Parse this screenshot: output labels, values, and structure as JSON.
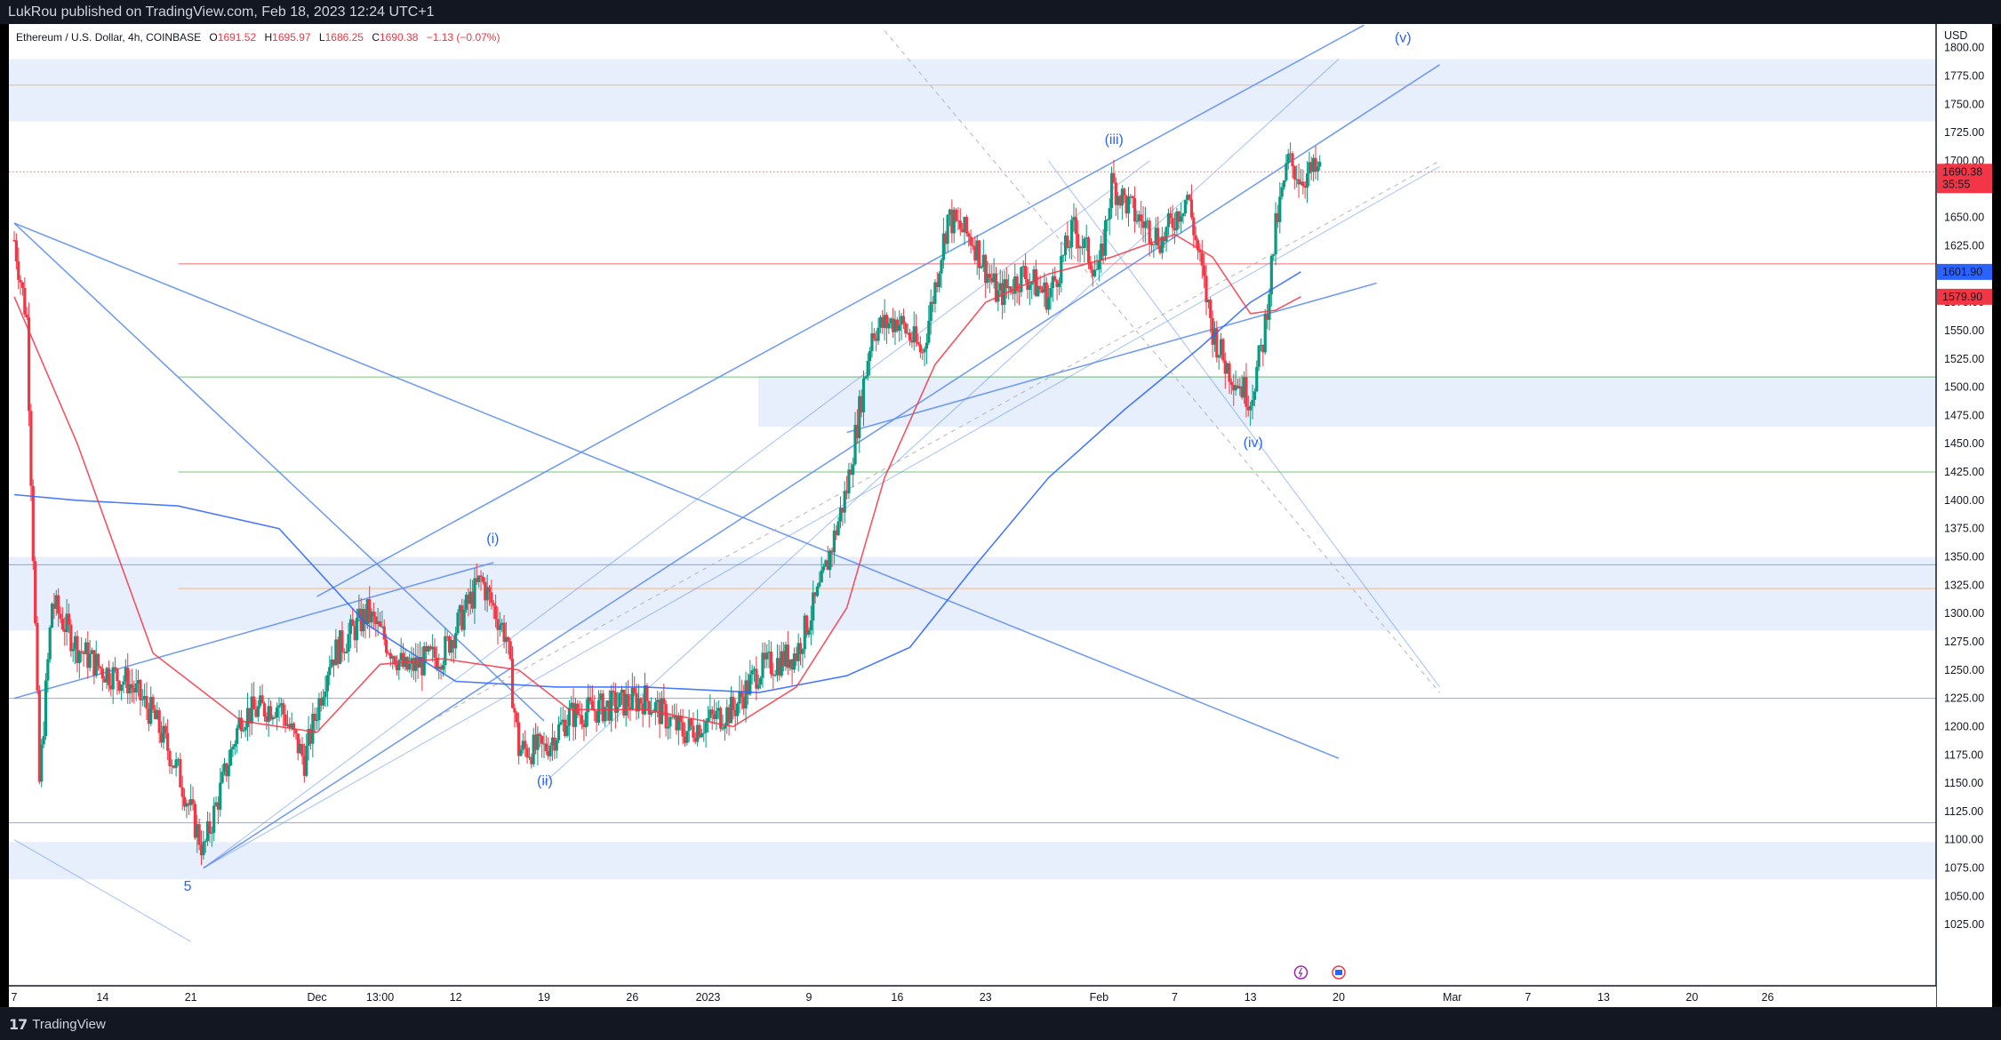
{
  "header": {
    "publish_line": "LukRou published on TradingView.com, Feb 18, 2023 12:24 UTC+1"
  },
  "footer": {
    "brand": "TradingView",
    "logo_icon": "tradingview-logo-icon"
  },
  "legend": {
    "symbol": "Ethereum / U.S. Dollar, 4h, COINBASE",
    "open_label": "O",
    "open": "1691.52",
    "high_label": "H",
    "high": "1695.97",
    "low_label": "L",
    "low": "1686.25",
    "close_label": "C",
    "close": "1690.38",
    "change": "−1.13 (−0.07%)"
  },
  "price_axis": {
    "currency": "USD",
    "ticks": [
      "1800.00",
      "1775.00",
      "1750.00",
      "1725.00",
      "1700.00",
      "1675.00",
      "1650.00",
      "1625.00",
      "1600.00",
      "1575.00",
      "1550.00",
      "1525.00",
      "1500.00",
      "1475.00",
      "1450.00",
      "1425.00",
      "1400.00",
      "1375.00",
      "1350.00",
      "1325.00",
      "1300.00",
      "1275.00",
      "1250.00",
      "1225.00",
      "1200.00",
      "1175.00",
      "1150.00",
      "1125.00",
      "1100.00",
      "1075.00",
      "1050.00",
      "1025.00"
    ],
    "last_price": "1690.38",
    "countdown": "35:55",
    "ma_labels": [
      {
        "value": "1601.90",
        "color": "#2962ff"
      },
      {
        "value": "1579.90",
        "color": "#f23645"
      }
    ]
  },
  "time_axis": {
    "ticks": [
      "7",
      "14",
      "21",
      "Dec",
      "13:00",
      "12",
      "19",
      "26",
      "2023",
      "9",
      "16",
      "23",
      "Feb",
      "7",
      "13",
      "20",
      "Mar",
      "7",
      "13",
      "20",
      "26"
    ]
  },
  "waves": [
    "5",
    "(i)",
    "(ii)",
    "(iii)",
    "(iv)",
    "(v)"
  ],
  "event_icons": [
    "lightning-event-icon",
    "us-flag-event-icon"
  ],
  "colors": {
    "up": "#089981",
    "down": "#f23645",
    "ma_fast": "#f23645",
    "ma_slow": "#2962ff",
    "trendline": "#5b8def",
    "zone": "#e3ebfc",
    "wave_label": "#2962ff"
  },
  "chart_data": {
    "type": "candlestick",
    "symbol": "ETH/USD",
    "interval": "4h",
    "ylim": [
      1000,
      1810
    ],
    "y_scale": "linear",
    "grid": false,
    "x_range": [
      "2022-11-07",
      "2023-02-28"
    ],
    "price_path": [
      [
        "2022-11-07",
        1630
      ],
      [
        "2022-11-08",
        1560
      ],
      [
        "2022-11-09",
        1150
      ],
      [
        "2022-11-10",
        1310
      ],
      [
        "2022-11-12",
        1270
      ],
      [
        "2022-11-14",
        1250
      ],
      [
        "2022-11-16",
        1240
      ],
      [
        "2022-11-18",
        1210
      ],
      [
        "2022-11-20",
        1160
      ],
      [
        "2022-11-22",
        1090
      ],
      [
        "2022-11-23",
        1130
      ],
      [
        "2022-11-25",
        1210
      ],
      [
        "2022-11-28",
        1220
      ],
      [
        "2022-11-30",
        1170
      ],
      [
        "2022-12-02",
        1260
      ],
      [
        "2022-12-05",
        1300
      ],
      [
        "2022-12-08",
        1250
      ],
      [
        "2022-12-11",
        1265
      ],
      [
        "2022-12-14",
        1330
      ],
      [
        "2022-12-16",
        1280
      ],
      [
        "2022-12-17",
        1180
      ],
      [
        "2022-12-19",
        1180
      ],
      [
        "2022-12-21",
        1210
      ],
      [
        "2022-12-25",
        1220
      ],
      [
        "2022-12-27",
        1225
      ],
      [
        "2022-12-30",
        1195
      ],
      [
        "2023-01-03",
        1215
      ],
      [
        "2023-01-05",
        1250
      ],
      [
        "2023-01-08",
        1265
      ],
      [
        "2023-01-10",
        1325
      ],
      [
        "2023-01-12",
        1410
      ],
      [
        "2023-01-14",
        1550
      ],
      [
        "2023-01-16",
        1560
      ],
      [
        "2023-01-18",
        1530
      ],
      [
        "2023-01-20",
        1650
      ],
      [
        "2023-01-22",
        1630
      ],
      [
        "2023-01-24",
        1580
      ],
      [
        "2023-01-26",
        1600
      ],
      [
        "2023-01-28",
        1580
      ],
      [
        "2023-01-30",
        1640
      ],
      [
        "2023-02-01",
        1600
      ],
      [
        "2023-02-02",
        1680
      ],
      [
        "2023-02-04",
        1650
      ],
      [
        "2023-02-06",
        1630
      ],
      [
        "2023-02-08",
        1670
      ],
      [
        "2023-02-10",
        1550
      ],
      [
        "2023-02-11",
        1520
      ],
      [
        "2023-02-13",
        1490
      ],
      [
        "2023-02-14",
        1540
      ],
      [
        "2023-02-15",
        1640
      ],
      [
        "2023-02-16",
        1700
      ],
      [
        "2023-02-17",
        1685
      ],
      [
        "2023-02-18",
        1690
      ]
    ],
    "ma_fast_path": [
      [
        "2022-11-07",
        1580
      ],
      [
        "2022-11-12",
        1450
      ],
      [
        "2022-11-18",
        1265
      ],
      [
        "2022-11-25",
        1205
      ],
      [
        "2022-12-01",
        1195
      ],
      [
        "2022-12-06",
        1255
      ],
      [
        "2022-12-11",
        1260
      ],
      [
        "2022-12-17",
        1250
      ],
      [
        "2022-12-21",
        1215
      ],
      [
        "2022-12-27",
        1215
      ],
      [
        "2023-01-03",
        1200
      ],
      [
        "2023-01-08",
        1235
      ],
      [
        "2023-01-12",
        1305
      ],
      [
        "2023-01-15",
        1420
      ],
      [
        "2023-01-19",
        1520
      ],
      [
        "2023-01-23",
        1575
      ],
      [
        "2023-01-28",
        1600
      ],
      [
        "2023-02-02",
        1615
      ],
      [
        "2023-02-07",
        1635
      ],
      [
        "2023-02-10",
        1615
      ],
      [
        "2023-02-13",
        1565
      ],
      [
        "2023-02-15",
        1568
      ],
      [
        "2023-02-17",
        1580
      ]
    ],
    "ma_slow_path": [
      [
        "2022-11-07",
        1405
      ],
      [
        "2022-11-12",
        1400
      ],
      [
        "2022-11-20",
        1395
      ],
      [
        "2022-11-28",
        1375
      ],
      [
        "2022-12-05",
        1290
      ],
      [
        "2022-12-12",
        1240
      ],
      [
        "2022-12-20",
        1235
      ],
      [
        "2022-12-27",
        1235
      ],
      [
        "2023-01-05",
        1230
      ],
      [
        "2023-01-12",
        1245
      ],
      [
        "2023-01-17",
        1270
      ],
      [
        "2023-01-22",
        1340
      ],
      [
        "2023-01-28",
        1420
      ],
      [
        "2023-02-03",
        1480
      ],
      [
        "2023-02-09",
        1535
      ],
      [
        "2023-02-13",
        1575
      ],
      [
        "2023-02-17",
        1602
      ]
    ],
    "zones": [
      [
        1735,
        1790
      ],
      [
        1465,
        1510
      ],
      [
        1285,
        1350
      ],
      [
        1065,
        1098
      ]
    ],
    "horizontal_levels": [
      {
        "price": 1767,
        "color": "orange"
      },
      {
        "price": 1690.38,
        "color": "red",
        "style": "dotted"
      },
      {
        "price": 1609,
        "color": "red"
      },
      {
        "price": 1509,
        "color": "green"
      },
      {
        "price": 1425,
        "color": "green"
      },
      {
        "price": 1343,
        "color": "blue"
      },
      {
        "price": 1322,
        "color": "orange"
      },
      {
        "price": 1225,
        "color": "blue"
      },
      {
        "price": 1115,
        "color": "blue"
      }
    ],
    "trendlines": [
      [
        [
          "2022-11-07",
          1645
        ],
        [
          "2022-12-19",
          1205
        ]
      ],
      [
        [
          "2022-11-07",
          1225
        ],
        [
          "2022-12-15",
          1345
        ]
      ],
      [
        [
          "2022-12-01",
          1315
        ],
        [
          "2023-02-22",
          1820
        ]
      ],
      [
        [
          "2022-11-07",
          1645
        ],
        [
          "2023-02-20",
          1172
        ]
      ],
      [
        [
          "2022-11-22",
          1075
        ],
        [
          "2023-02-28",
          1785
        ]
      ],
      [
        [
          "2022-11-22",
          1075
        ],
        [
          "2023-02-28",
          1695
        ]
      ],
      [
        [
          "2022-11-22",
          1075
        ],
        [
          "2023-02-05",
          1700
        ]
      ],
      [
        [
          "2023-01-12",
          1460
        ],
        [
          "2023-02-23",
          1592
        ]
      ],
      [
        [
          "2022-12-19",
          1150
        ],
        [
          "2023-02-20",
          1790
        ]
      ],
      [
        [
          "2023-01-28",
          1700
        ],
        [
          "2023-02-28",
          1235
        ]
      ],
      [
        [
          "2022-11-07",
          1100
        ],
        [
          "2022-11-21",
          1010
        ]
      ]
    ],
    "wave_points": [
      {
        "label": "5",
        "date": "2022-11-21",
        "price": 1055
      },
      {
        "label": "(i)",
        "date": "2022-12-15",
        "price": 1362
      },
      {
        "label": "(ii)",
        "date": "2022-12-19",
        "price": 1148
      },
      {
        "label": "(iii)",
        "date": "2023-02-02",
        "price": 1715
      },
      {
        "label": "(iv)",
        "date": "2023-02-13",
        "price": 1447
      },
      {
        "label": "(v)",
        "date": "2023-02-25",
        "price": 1805
      }
    ]
  }
}
